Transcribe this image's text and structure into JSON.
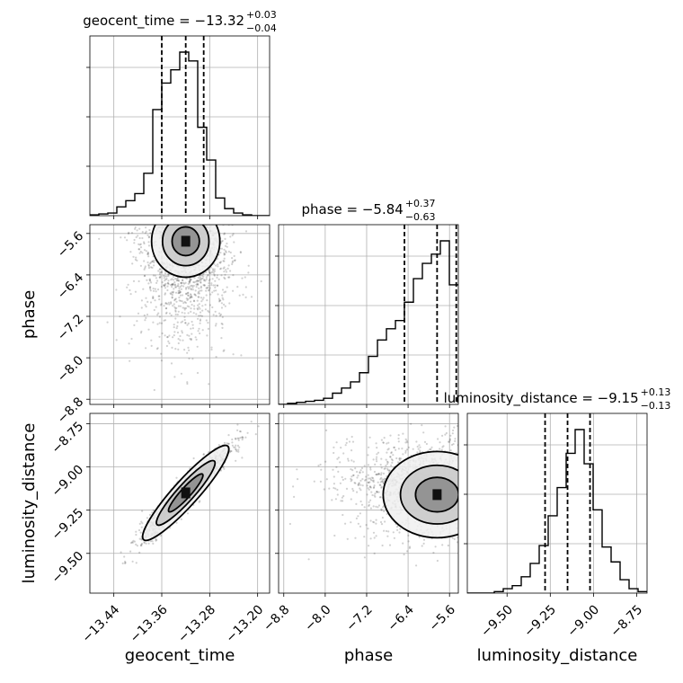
{
  "chart_data": {
    "type": "corner",
    "parameters": [
      "geocent_time",
      "phase",
      "luminosity_distance"
    ],
    "axis_labels": {
      "geocent_time": "geocent_time",
      "phase": "phase",
      "luminosity_distance": "luminosity_distance"
    },
    "ranges": {
      "geocent_time": [
        -13.48,
        -13.18
      ],
      "phase": [
        -8.9,
        -5.43
      ],
      "luminosity_distance": [
        -9.73,
        -8.69
      ]
    },
    "ticks": {
      "geocent_time": [
        -13.44,
        -13.36,
        -13.28,
        -13.2
      ],
      "phase": [
        -8.8,
        -8.0,
        -7.2,
        -6.4,
        -5.6
      ],
      "luminosity_distance": [
        -9.5,
        -9.25,
        -9.0,
        -8.75
      ]
    },
    "tick_labels": {
      "geocent_time": [
        "−13.44",
        "−13.36",
        "−13.28",
        "−13.20"
      ],
      "phase": [
        "−8.8",
        "−8.0",
        "−7.2",
        "−6.4",
        "−5.6"
      ],
      "luminosity_distance": [
        "−9.50",
        "−9.25",
        "−9.00",
        "−8.75"
      ]
    },
    "titles": {
      "geocent_time": {
        "main": "geocent_time = −13.32",
        "plus": "+0.03",
        "minus": "−0.04"
      },
      "phase": {
        "main": "phase = −5.84",
        "plus": "+0.37",
        "minus": "−0.63"
      },
      "luminosity_distance": {
        "main": "luminosity_distance = −9.15",
        "plus": "+0.13",
        "minus": "−0.13"
      }
    },
    "quantiles": {
      "geocent_time": [
        -13.36,
        -13.32,
        -13.29
      ],
      "phase": [
        -6.47,
        -5.84,
        -5.47
      ],
      "luminosity_distance": [
        -9.28,
        -9.15,
        -9.02
      ]
    },
    "histograms": {
      "geocent_time": {
        "edges": [
          -13.48,
          -13.465,
          -13.45,
          -13.435,
          -13.42,
          -13.405,
          -13.39,
          -13.375,
          -13.36,
          -13.345,
          -13.33,
          -13.315,
          -13.3,
          -13.285,
          -13.27,
          -13.255,
          -13.24,
          -13.225,
          -13.21,
          -13.195,
          -13.18
        ],
        "counts": [
          1,
          2,
          3,
          10,
          17,
          25,
          48,
          120,
          150,
          165,
          185,
          175,
          100,
          63,
          20,
          8,
          3,
          1,
          0,
          0
        ]
      },
      "phase": {
        "edges": [
          -8.9,
          -8.726,
          -8.553,
          -8.379,
          -8.206,
          -8.032,
          -7.859,
          -7.685,
          -7.512,
          -7.338,
          -7.165,
          -6.991,
          -6.818,
          -6.644,
          -6.471,
          -6.297,
          -6.124,
          -5.95,
          -5.777,
          -5.603,
          -5.43
        ],
        "counts": [
          0,
          1,
          2,
          3,
          4,
          6,
          11,
          16,
          22,
          31,
          47,
          63,
          74,
          82,
          100,
          123,
          138,
          147,
          160,
          117
        ]
      },
      "luminosity_distance": {
        "edges": [
          -9.73,
          -9.678,
          -9.626,
          -9.574,
          -9.522,
          -9.47,
          -9.418,
          -9.366,
          -9.314,
          -9.262,
          -9.21,
          -9.158,
          -9.106,
          -9.054,
          -9.002,
          -8.95,
          -8.898,
          -8.846,
          -8.794,
          -8.742,
          -8.69
        ],
        "counts": [
          0,
          0,
          0,
          1,
          3,
          5,
          11,
          20,
          32,
          52,
          71,
          94,
          110,
          87,
          56,
          31,
          21,
          9,
          3,
          1
        ]
      }
    },
    "scatter_pairs": [
      {
        "x": "geocent_time",
        "y": "phase"
      },
      {
        "x": "geocent_time",
        "y": "luminosity_distance"
      },
      {
        "x": "phase",
        "y": "luminosity_distance"
      }
    ],
    "grid": true
  }
}
